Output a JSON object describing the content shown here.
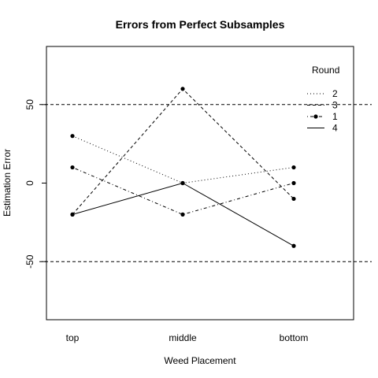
{
  "chart_data": {
    "type": "line",
    "title": "Errors from Perfect Subsamples",
    "xlabel": "Weed Placement",
    "ylabel": "Estimation Error",
    "categories": [
      "top",
      "middle",
      "bottom"
    ],
    "ylim": [
      -87,
      87
    ],
    "yticks": [
      -50,
      0,
      50
    ],
    "ytick_labels": [
      "-50",
      "0",
      "50"
    ],
    "reference_lines": [
      -50,
      50
    ],
    "legend": {
      "title": "Round",
      "placement": "top-right"
    },
    "series": [
      {
        "name": "2",
        "values": [
          30,
          0,
          10
        ],
        "line_style": "dotted",
        "markers": true,
        "color": "#000000"
      },
      {
        "name": "3",
        "values": [
          -20,
          60,
          -10
        ],
        "line_style": "dashed",
        "markers": true,
        "color": "#000000"
      },
      {
        "name": "1",
        "values": [
          10,
          -20,
          0
        ],
        "line_style": "dashdot",
        "markers": true,
        "color": "#000000"
      },
      {
        "name": "4",
        "values": [
          -20,
          0,
          -40
        ],
        "line_style": "solid",
        "markers": true,
        "color": "#000000"
      }
    ]
  }
}
